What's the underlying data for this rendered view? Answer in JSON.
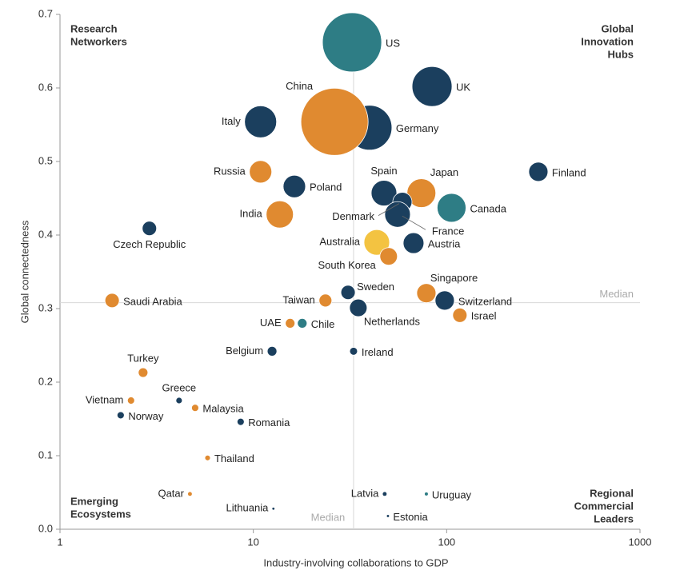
{
  "chart_data": {
    "type": "bubble",
    "x_label": "Industry-involving collaborations to GDP",
    "y_label": "Global connectedness",
    "x_log": true,
    "xlim": [
      1,
      1000
    ],
    "xticks": [
      1,
      10,
      100,
      1000
    ],
    "ylim": [
      0,
      0.7
    ],
    "yticks": [
      {
        "value": 0,
        "label": "0.0"
      },
      0.1,
      0.2,
      0.3,
      0.4,
      0.5,
      0.6,
      0.7
    ],
    "medians": {
      "x": 33,
      "y": 0.308,
      "label": "Median"
    },
    "quadrants": {
      "top_left": [
        "Research",
        "Networkers"
      ],
      "top_right": [
        "Global",
        "Innovation",
        "Hubs"
      ],
      "bottom_left": [
        "Emerging",
        "Ecosystems"
      ],
      "bottom_right": [
        "Regional",
        "Commercial",
        "Leaders"
      ]
    },
    "points": [
      {
        "label": "US",
        "x": 32.4,
        "y": 0.662,
        "size": 342,
        "color": "#2e7d85"
      },
      {
        "label": "UK",
        "x": 84,
        "y": 0.602,
        "size": 156,
        "color": "#1b3f5e"
      },
      {
        "label": "Germany",
        "x": 39.9,
        "y": 0.546,
        "size": 196,
        "color": "#1b3f5e"
      },
      {
        "label": "China",
        "x": 26.3,
        "y": 0.554,
        "size": 441,
        "color": "#e08a30"
      },
      {
        "label": "Italy",
        "x": 10.9,
        "y": 0.554,
        "size": 100,
        "color": "#1b3f5e"
      },
      {
        "label": "Finland",
        "x": 298,
        "y": 0.486,
        "size": 36,
        "color": "#1b3f5e"
      },
      {
        "label": "Russia",
        "x": 10.9,
        "y": 0.486,
        "size": 49,
        "color": "#e08a30"
      },
      {
        "label": "Poland",
        "x": 16.3,
        "y": 0.466,
        "size": 49,
        "color": "#1b3f5e"
      },
      {
        "label": "Spain",
        "x": 47.4,
        "y": 0.457,
        "size": 64,
        "color": "#1b3f5e"
      },
      {
        "label": "Japan",
        "x": 74,
        "y": 0.457,
        "size": 81,
        "color": "#e08a30"
      },
      {
        "label": "Denmark",
        "x": 59,
        "y": 0.445,
        "size": 36,
        "color": "#1b3f5e"
      },
      {
        "label": "Canada",
        "x": 106,
        "y": 0.437,
        "size": 81,
        "color": "#2e7d85"
      },
      {
        "label": "France",
        "x": 55.7,
        "y": 0.428,
        "size": 64,
        "color": "#1b3f5e"
      },
      {
        "label": "India",
        "x": 13.7,
        "y": 0.428,
        "size": 72,
        "color": "#e08a30"
      },
      {
        "label": "Czech Republic",
        "x": 2.9,
        "y": 0.409,
        "size": 20,
        "color": "#1b3f5e"
      },
      {
        "label": "Australia",
        "x": 43.5,
        "y": 0.39,
        "size": 64,
        "color": "#f3c341"
      },
      {
        "label": "Austria",
        "x": 67.4,
        "y": 0.389,
        "size": 42,
        "color": "#1b3f5e"
      },
      {
        "label": "South Korea",
        "x": 50.1,
        "y": 0.371,
        "size": 30,
        "color": "#e08a30"
      },
      {
        "label": "Sweden",
        "x": 30.9,
        "y": 0.322,
        "size": 20,
        "color": "#1b3f5e"
      },
      {
        "label": "Singapore",
        "x": 78.5,
        "y": 0.321,
        "size": 36,
        "color": "#e08a30"
      },
      {
        "label": "Taiwan",
        "x": 23.6,
        "y": 0.311,
        "size": 16,
        "color": "#e08a30"
      },
      {
        "label": "Saudi Arabia",
        "x": 1.86,
        "y": 0.311,
        "size": 20,
        "color": "#e08a30"
      },
      {
        "label": "Switzerland",
        "x": 97.7,
        "y": 0.311,
        "size": 36,
        "color": "#1b3f5e"
      },
      {
        "label": "Netherlands",
        "x": 34.9,
        "y": 0.301,
        "size": 30,
        "color": "#1b3f5e"
      },
      {
        "label": "Israel",
        "x": 117,
        "y": 0.291,
        "size": 20,
        "color": "#e08a30"
      },
      {
        "label": "UAE",
        "x": 15.5,
        "y": 0.28,
        "size": 9,
        "color": "#e08a30"
      },
      {
        "label": "Chile",
        "x": 17.9,
        "y": 0.28,
        "size": 9,
        "color": "#2e7d85"
      },
      {
        "label": "Belgium",
        "x": 12.5,
        "y": 0.242,
        "size": 9,
        "color": "#1b3f5e"
      },
      {
        "label": "Ireland",
        "x": 33,
        "y": 0.242,
        "size": 6,
        "color": "#1b3f5e"
      },
      {
        "label": "Turkey",
        "x": 2.69,
        "y": 0.213,
        "size": 9,
        "color": "#e08a30"
      },
      {
        "label": "Vietnam",
        "x": 2.33,
        "y": 0.175,
        "size": 5,
        "color": "#e08a30"
      },
      {
        "label": "Greece",
        "x": 4.13,
        "y": 0.175,
        "size": 4,
        "color": "#1b3f5e"
      },
      {
        "label": "Malaysia",
        "x": 5.0,
        "y": 0.165,
        "size": 5,
        "color": "#e08a30"
      },
      {
        "label": "Norway",
        "x": 2.06,
        "y": 0.155,
        "size": 5,
        "color": "#1b3f5e"
      },
      {
        "label": "Romania",
        "x": 8.6,
        "y": 0.146,
        "size": 5,
        "color": "#1b3f5e"
      },
      {
        "label": "Thailand",
        "x": 5.8,
        "y": 0.097,
        "size": 3,
        "color": "#e08a30"
      },
      {
        "label": "Qatar",
        "x": 4.7,
        "y": 0.048,
        "size": 1.5,
        "color": "#e08a30"
      },
      {
        "label": "Latvia",
        "x": 47.8,
        "y": 0.048,
        "size": 1.5,
        "color": "#1b3f5e"
      },
      {
        "label": "Uruguay",
        "x": 78.5,
        "y": 0.048,
        "size": 1,
        "color": "#2e7d85"
      },
      {
        "label": "Lithuania",
        "x": 12.7,
        "y": 0.028,
        "size": 0.5,
        "color": "#1b3f5e"
      },
      {
        "label": "Estonia",
        "x": 49.7,
        "y": 0.018,
        "size": 0.5,
        "color": "#1b3f5e"
      }
    ]
  }
}
